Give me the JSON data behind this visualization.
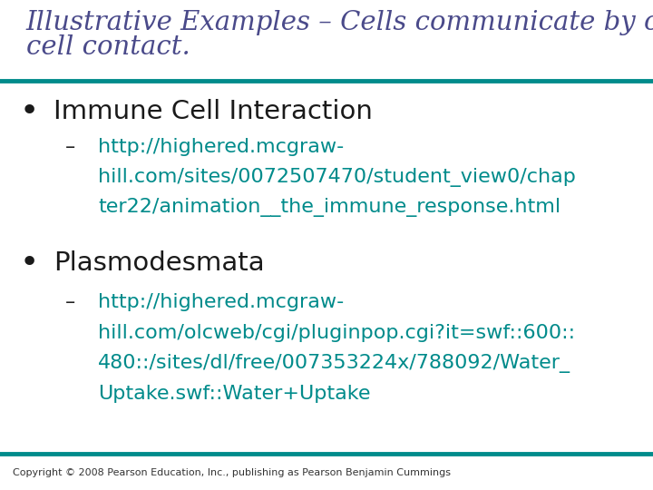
{
  "title_line1": "Illustrative Examples – Cells communicate by cell-to-",
  "title_line2": "cell contact.",
  "title_color": "#4a4a8a",
  "title_fontsize": 21,
  "line_color": "#008b8b",
  "line_width": 3.5,
  "bullet1": "Immune Cell Interaction",
  "bullet2": "Plasmodesmata",
  "bullet_fontsize": 21,
  "bullet_color": "#1a1a1a",
  "link1_line1": "http://highered.mcgraw-",
  "link1_line2": "hill.com/sites/0072507470/student_view0/chap",
  "link1_line3": "ter22/animation__the_immune_response.html",
  "link2_line1": "http://highered.mcgraw-",
  "link2_line2": "hill.com/olcweb/cgi/pluginpop.cgi?it=swf::600::",
  "link2_line3": "480::/sites/dl/free/007353224x/788092/Water_",
  "link2_line4": "Uptake.swf::Water+Uptake",
  "link_color": "#008b8b",
  "link_fontsize": 16,
  "dash_color": "#222222",
  "footer_text": "Copyright © 2008 Pearson Education, Inc., publishing as Pearson Benjamin Cummings",
  "footer_fontsize": 8,
  "footer_color": "#333333",
  "bg_color": "#ffffff"
}
